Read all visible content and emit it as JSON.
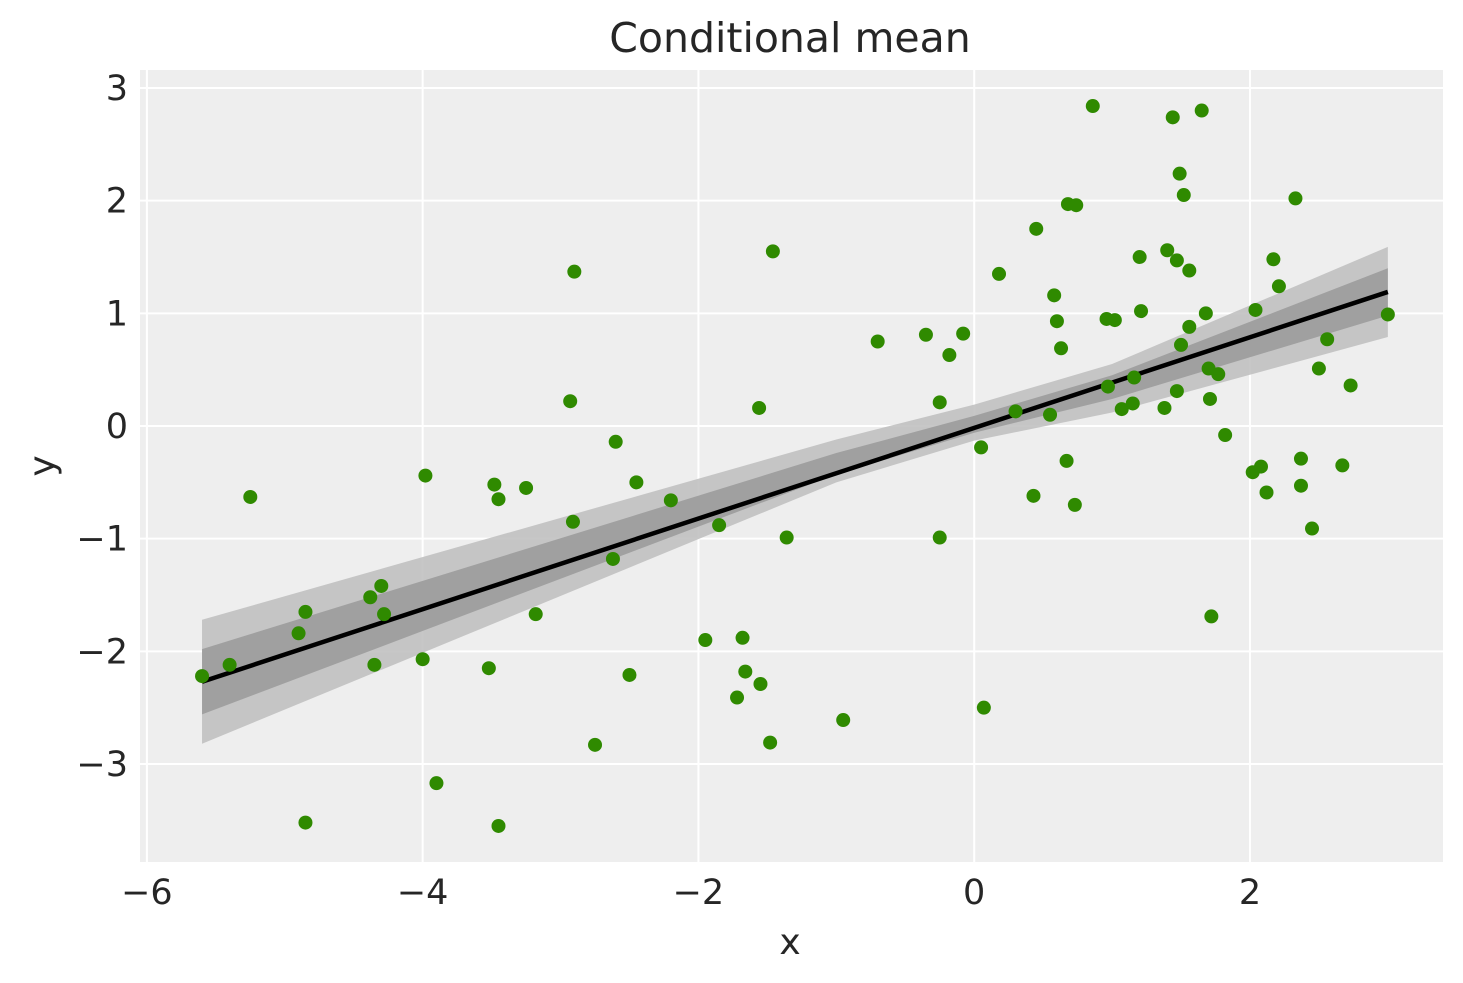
{
  "chart_data": {
    "type": "scatter",
    "title": "Conditional mean",
    "xlabel": "x",
    "ylabel": "y",
    "xlim": [
      -6.05,
      3.4
    ],
    "ylim": [
      -3.87,
      3.16
    ],
    "xticks": [
      -6,
      -4,
      -2,
      0,
      2
    ],
    "xtick_labels": [
      "−6",
      "−4",
      "−2",
      "0",
      "2"
    ],
    "yticks": [
      -3,
      -2,
      -1,
      0,
      1,
      2,
      3
    ],
    "ytick_labels": [
      "−3",
      "−2",
      "−1",
      "0",
      "1",
      "2",
      "3"
    ],
    "grid": true,
    "legend": "none",
    "colors": {
      "background": "#eeeeee",
      "grid": "#ffffff",
      "points": "#2f8a00",
      "mean_line": "#000000",
      "band_outer": "#bdbdbd",
      "band_inner": "#999999"
    },
    "mean_line": {
      "x": [
        -5.6,
        3.0
      ],
      "y": [
        -2.27,
        1.19
      ]
    },
    "band_outer": {
      "x": [
        -5.6,
        -1.0,
        0.0,
        1.0,
        3.0
      ],
      "upper": [
        -1.72,
        -0.12,
        0.19,
        0.55,
        1.59
      ],
      "lower": [
        -2.82,
        -0.5,
        -0.13,
        0.12,
        0.79
      ]
    },
    "band_inner": {
      "x": [
        -5.6,
        -1.0,
        0.0,
        1.0,
        3.0
      ],
      "upper": [
        -1.98,
        -0.24,
        0.09,
        0.45,
        1.4
      ],
      "lower": [
        -2.56,
        -0.43,
        -0.06,
        0.24,
        0.98
      ]
    },
    "points": {
      "x": [
        -5.6,
        -5.4,
        -5.25,
        -4.9,
        -4.85,
        -4.85,
        -4.38,
        -4.35,
        -4.3,
        -4.28,
        -4.0,
        -3.98,
        -3.9,
        -3.52,
        -3.48,
        -3.45,
        -3.45,
        -3.25,
        -3.18,
        -2.93,
        -2.91,
        -2.9,
        -2.75,
        -2.62,
        -2.6,
        -2.5,
        -2.45,
        -2.2,
        -1.95,
        -1.85,
        -1.72,
        -1.68,
        -1.66,
        -1.56,
        -1.55,
        -1.48,
        -1.46,
        -1.36,
        -0.95,
        -0.7,
        -0.35,
        -0.25,
        -0.25,
        -0.18,
        -0.08,
        0.05,
        0.07,
        0.18,
        0.3,
        0.43,
        0.45,
        0.55,
        0.58,
        0.6,
        0.63,
        0.67,
        0.68,
        0.73,
        0.74,
        0.86,
        0.96,
        0.97,
        1.02,
        1.07,
        1.15,
        1.16,
        1.2,
        1.21,
        1.38,
        1.4,
        1.44,
        1.47,
        1.47,
        1.49,
        1.5,
        1.52,
        1.56,
        1.56,
        1.65,
        1.68,
        1.7,
        1.71,
        1.72,
        1.77,
        1.82,
        2.02,
        2.04,
        2.08,
        2.12,
        2.17,
        2.21,
        2.33,
        2.37,
        2.37,
        2.45,
        2.5,
        2.56,
        2.67,
        2.73,
        3.0
      ],
      "y": [
        -2.22,
        -2.12,
        -0.63,
        -1.84,
        -1.65,
        -3.52,
        -1.52,
        -2.12,
        -1.42,
        -1.67,
        -2.07,
        -0.44,
        -3.17,
        -2.15,
        -0.52,
        -0.65,
        -3.55,
        -0.55,
        -1.67,
        0.22,
        -0.85,
        1.37,
        -2.83,
        -1.18,
        -0.14,
        -2.21,
        -0.5,
        -0.66,
        -1.9,
        -0.88,
        -2.41,
        -1.88,
        -2.18,
        0.16,
        -2.29,
        -2.81,
        1.55,
        -0.99,
        -2.61,
        0.75,
        0.81,
        0.21,
        -0.99,
        0.63,
        0.82,
        -0.19,
        -2.5,
        1.35,
        0.13,
        -0.62,
        1.75,
        0.1,
        1.16,
        0.93,
        0.69,
        -0.31,
        1.97,
        -0.7,
        1.96,
        2.84,
        0.95,
        0.35,
        0.94,
        0.15,
        0.2,
        0.43,
        1.5,
        1.02,
        0.16,
        1.56,
        2.74,
        1.47,
        0.31,
        2.24,
        0.72,
        2.05,
        1.38,
        0.88,
        2.8,
        1.0,
        0.51,
        0.24,
        -1.69,
        0.46,
        -0.08,
        -0.41,
        1.03,
        -0.36,
        -0.59,
        1.48,
        1.24,
        2.02,
        -0.29,
        -0.53,
        -0.91,
        0.51,
        0.77,
        -0.35,
        0.36,
        0.99
      ]
    }
  }
}
